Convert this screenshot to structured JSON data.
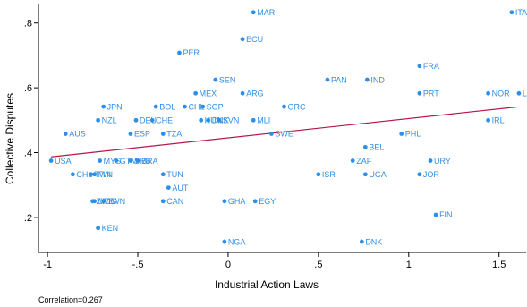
{
  "chart_data": {
    "type": "scatter",
    "xlabel": "Industrial Action Laws",
    "ylabel": "Collective Disputes",
    "xlim": [
      -1.05,
      1.65
    ],
    "ylim": [
      0.092,
      0.86
    ],
    "x_ticks": [
      -1,
      -0.5,
      0,
      0.5,
      1,
      1.5
    ],
    "x_tick_labels": [
      "-1",
      "-.5",
      "0",
      ".5",
      "1",
      "1.5"
    ],
    "y_ticks": [
      0.2,
      0.4,
      0.6,
      0.8
    ],
    "y_tick_labels": [
      ".2",
      ".4",
      ".6",
      ".8"
    ],
    "grid": false,
    "marker_color": "#2f8fe6",
    "fit_line_color": "#b5174b",
    "fit_line": {
      "x": [
        -0.98,
        1.6
      ],
      "y": [
        0.387,
        0.541
      ]
    },
    "note": "Correlation=0.267",
    "points": [
      {
        "label": "MAR",
        "x": 0.14,
        "y": 0.833
      },
      {
        "label": "ITA",
        "x": 1.57,
        "y": 0.833
      },
      {
        "label": "ECU",
        "x": 0.08,
        "y": 0.75
      },
      {
        "label": "PER",
        "x": -0.27,
        "y": 0.708
      },
      {
        "label": "FRA",
        "x": 1.06,
        "y": 0.667
      },
      {
        "label": "SEN",
        "x": -0.07,
        "y": 0.625
      },
      {
        "label": "PAN",
        "x": 0.55,
        "y": 0.625
      },
      {
        "label": "IND",
        "x": 0.77,
        "y": 0.625
      },
      {
        "label": "MEX",
        "x": -0.18,
        "y": 0.583
      },
      {
        "label": "ARG",
        "x": 0.08,
        "y": 0.583
      },
      {
        "label": "PRT",
        "x": 1.06,
        "y": 0.583
      },
      {
        "label": "NOR",
        "x": 1.44,
        "y": 0.583
      },
      {
        "label": "LKA",
        "x": 1.61,
        "y": 0.583
      },
      {
        "label": "JPN",
        "x": -0.69,
        "y": 0.542
      },
      {
        "label": "BOL",
        "x": -0.4,
        "y": 0.542
      },
      {
        "label": "CHL",
        "x": -0.24,
        "y": 0.542
      },
      {
        "label": "SGP",
        "x": -0.14,
        "y": 0.542
      },
      {
        "label": "GRC",
        "x": 0.31,
        "y": 0.542
      },
      {
        "label": "NZL",
        "x": -0.72,
        "y": 0.5
      },
      {
        "label": "DEU",
        "x": -0.51,
        "y": 0.5
      },
      {
        "label": "CHE",
        "x": -0.42,
        "y": 0.5
      },
      {
        "label": "HUN",
        "x": -0.15,
        "y": 0.5
      },
      {
        "label": "DNK",
        "x": -0.11,
        "y": 0.5
      },
      {
        "label": "SVN",
        "x": -0.05,
        "y": 0.5
      },
      {
        "label": "MLI",
        "x": 0.14,
        "y": 0.5
      },
      {
        "label": "IRL",
        "x": 1.44,
        "y": 0.5
      },
      {
        "label": "AUS",
        "x": -0.9,
        "y": 0.458
      },
      {
        "label": "ESP",
        "x": -0.54,
        "y": 0.458
      },
      {
        "label": "TZA",
        "x": -0.36,
        "y": 0.458
      },
      {
        "label": "SWE",
        "x": 0.24,
        "y": 0.458
      },
      {
        "label": "PHL",
        "x": 0.96,
        "y": 0.458
      },
      {
        "label": "BEL",
        "x": 0.76,
        "y": 0.417
      },
      {
        "label": "USA",
        "x": -0.98,
        "y": 0.375
      },
      {
        "label": "MYS",
        "x": -0.71,
        "y": 0.375
      },
      {
        "label": "GTM",
        "x": -0.62,
        "y": 0.375
      },
      {
        "label": "SRB",
        "x": -0.54,
        "y": 0.375
      },
      {
        "label": "BRA",
        "x": -0.5,
        "y": 0.375
      },
      {
        "label": "ZAF",
        "x": 0.69,
        "y": 0.375
      },
      {
        "label": "URY",
        "x": 1.12,
        "y": 0.375
      },
      {
        "label": "CHL",
        "x": -0.86,
        "y": 0.333
      },
      {
        "label": "TWN",
        "x": -0.76,
        "y": 0.333
      },
      {
        "label": "FIN",
        "x": -0.74,
        "y": 0.333
      },
      {
        "label": "TUN",
        "x": -0.36,
        "y": 0.333
      },
      {
        "label": "ISR",
        "x": 0.5,
        "y": 0.333
      },
      {
        "label": "UGA",
        "x": 0.76,
        "y": 0.333
      },
      {
        "label": "JOR",
        "x": 1.06,
        "y": 0.333
      },
      {
        "label": "AUT",
        "x": -0.33,
        "y": 0.292
      },
      {
        "label": "ZWE",
        "x": -0.75,
        "y": 0.25
      },
      {
        "label": "MDG",
        "x": -0.74,
        "y": 0.25
      },
      {
        "label": "TWN",
        "x": -0.69,
        "y": 0.25
      },
      {
        "label": "CAN",
        "x": -0.36,
        "y": 0.25
      },
      {
        "label": "GHA",
        "x": -0.02,
        "y": 0.25
      },
      {
        "label": "EGY",
        "x": 0.15,
        "y": 0.25
      },
      {
        "label": "FIN",
        "x": 1.15,
        "y": 0.208
      },
      {
        "label": "KEN",
        "x": -0.72,
        "y": 0.167
      },
      {
        "label": "NGA",
        "x": -0.02,
        "y": 0.125
      },
      {
        "label": "DNK",
        "x": 0.74,
        "y": 0.125
      }
    ]
  }
}
